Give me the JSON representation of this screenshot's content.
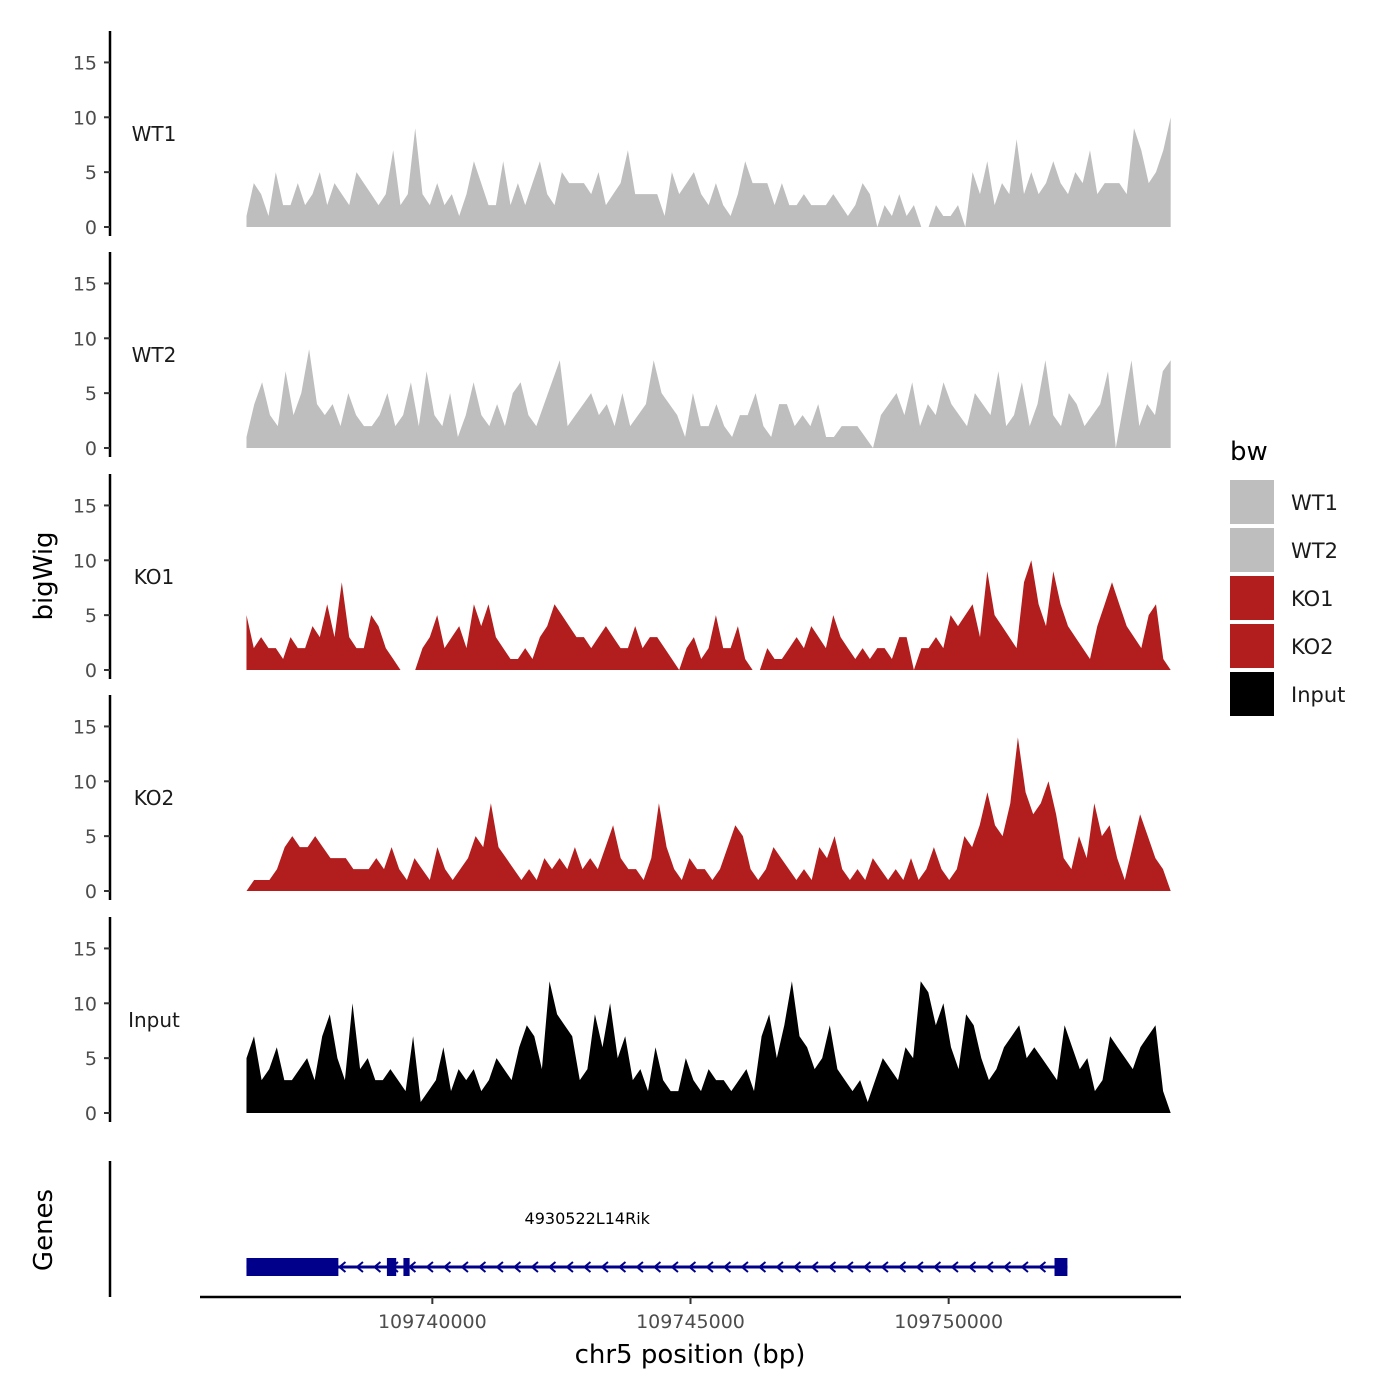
{
  "chart_data": {
    "type": "area",
    "genome_browser": true,
    "x": {
      "label": "chr5 position (bp)",
      "range": [
        109735500,
        109754500
      ],
      "ticks": [
        109740000,
        109745000,
        109750000
      ],
      "tick_labels": [
        "109740000",
        "109745000",
        "109750000"
      ]
    },
    "y": {
      "label": "bigWig",
      "range": [
        0,
        17.5
      ],
      "ticks": [
        0,
        5,
        10,
        15
      ],
      "tick_labels": [
        "0",
        "5",
        "10",
        "15"
      ]
    },
    "legend": {
      "title": "bw",
      "position": "right",
      "entries": [
        {
          "label": "WT1",
          "color": "#bebebe"
        },
        {
          "label": "WT2",
          "color": "#bebebe"
        },
        {
          "label": "KO1",
          "color": "#b21e1e"
        },
        {
          "label": "KO2",
          "color": "#b21e1e"
        },
        {
          "label": "Input",
          "color": "#000000"
        }
      ]
    },
    "series": [
      {
        "name": "WT1",
        "color": "#bebebe",
        "x_start": 109736400,
        "x_end": 109754300,
        "values": [
          1,
          4,
          3,
          1,
          5,
          2,
          2,
          4,
          2,
          3,
          5,
          2,
          4,
          3,
          2,
          5,
          4,
          3,
          2,
          3,
          7,
          2,
          3,
          9,
          3,
          2,
          4,
          2,
          3,
          1,
          3,
          6,
          4,
          2,
          2,
          6,
          2,
          4,
          2,
          4,
          6,
          3,
          2,
          5,
          4,
          4,
          4,
          3,
          5,
          2,
          3,
          4,
          7,
          3,
          3,
          3,
          3,
          1,
          5,
          3,
          4,
          5,
          3,
          2,
          4,
          2,
          1,
          3,
          6,
          4,
          4,
          4,
          2,
          4,
          2,
          2,
          3,
          2,
          2,
          2,
          3,
          2,
          1,
          2,
          4,
          3,
          0,
          2,
          1,
          3,
          1,
          2,
          0,
          0,
          2,
          1,
          1,
          2,
          0,
          5,
          3,
          6,
          2,
          4,
          3,
          8,
          3,
          5,
          3,
          4,
          6,
          4,
          3,
          5,
          4,
          7,
          3,
          4,
          4,
          4,
          3,
          9,
          7,
          4,
          5,
          7,
          10
        ]
      },
      {
        "name": "WT2",
        "color": "#bebebe",
        "x_start": 109736400,
        "x_end": 109754300,
        "values": [
          1,
          4,
          6,
          3,
          2,
          7,
          3,
          5,
          9,
          4,
          3,
          4,
          2,
          5,
          3,
          2,
          2,
          3,
          5,
          2,
          3,
          6,
          2,
          7,
          3,
          2,
          5,
          1,
          3,
          6,
          3,
          2,
          4,
          2,
          5,
          6,
          3,
          2,
          4,
          6,
          8,
          2,
          3,
          4,
          5,
          3,
          4,
          2,
          5,
          2,
          3,
          4,
          8,
          5,
          4,
          3,
          1,
          5,
          2,
          2,
          4,
          2,
          1,
          3,
          3,
          5,
          2,
          1,
          4,
          4,
          2,
          3,
          2,
          4,
          1,
          1,
          2,
          2,
          2,
          1,
          0,
          3,
          4,
          5,
          3,
          6,
          2,
          4,
          3,
          6,
          4,
          3,
          2,
          5,
          4,
          3,
          7,
          2,
          3,
          6,
          2,
          4,
          8,
          3,
          2,
          5,
          4,
          2,
          3,
          4,
          7,
          0,
          4,
          8,
          2,
          4,
          3,
          7,
          8
        ]
      },
      {
        "name": "KO1",
        "color": "#b21e1e",
        "x_start": 109736400,
        "x_end": 109754300,
        "values": [
          5,
          2,
          3,
          2,
          2,
          1,
          3,
          2,
          2,
          4,
          3,
          6,
          3,
          8,
          3,
          2,
          2,
          5,
          4,
          2,
          1,
          0,
          0,
          0,
          2,
          3,
          5,
          2,
          3,
          4,
          2,
          6,
          4,
          6,
          3,
          2,
          1,
          1,
          2,
          1,
          3,
          4,
          6,
          5,
          4,
          3,
          3,
          2,
          3,
          4,
          3,
          2,
          2,
          4,
          2,
          3,
          3,
          2,
          1,
          0,
          2,
          3,
          1,
          2,
          5,
          2,
          2,
          4,
          1,
          0,
          0,
          2,
          1,
          1,
          2,
          3,
          2,
          4,
          3,
          2,
          5,
          3,
          2,
          1,
          2,
          1,
          2,
          2,
          1,
          3,
          3,
          0,
          2,
          2,
          3,
          2,
          5,
          4,
          5,
          6,
          3,
          9,
          5,
          4,
          3,
          2,
          8,
          10,
          6,
          4,
          9,
          6,
          4,
          3,
          2,
          1,
          4,
          6,
          8,
          6,
          4,
          3,
          2,
          5,
          6,
          1,
          0
        ]
      },
      {
        "name": "KO2",
        "color": "#b21e1e",
        "x_start": 109736400,
        "x_end": 109754300,
        "values": [
          0,
          1,
          1,
          1,
          2,
          4,
          5,
          4,
          4,
          5,
          4,
          3,
          3,
          3,
          2,
          2,
          2,
          3,
          2,
          4,
          2,
          1,
          3,
          2,
          1,
          4,
          2,
          1,
          2,
          3,
          5,
          4,
          8,
          4,
          3,
          2,
          1,
          2,
          1,
          3,
          2,
          3,
          2,
          4,
          2,
          3,
          2,
          4,
          6,
          3,
          2,
          2,
          1,
          3,
          8,
          4,
          2,
          1,
          3,
          2,
          2,
          1,
          2,
          4,
          6,
          5,
          2,
          1,
          2,
          4,
          3,
          2,
          1,
          2,
          1,
          4,
          3,
          5,
          2,
          1,
          2,
          1,
          3,
          2,
          1,
          2,
          1,
          3,
          1,
          2,
          4,
          2,
          1,
          2,
          5,
          4,
          6,
          9,
          6,
          5,
          8,
          14,
          9,
          7,
          8,
          10,
          7,
          3,
          2,
          5,
          3,
          8,
          5,
          6,
          3,
          1,
          4,
          7,
          5,
          3,
          2,
          0
        ]
      },
      {
        "name": "Input",
        "color": "#000000",
        "x_start": 109736400,
        "x_end": 109754300,
        "values": [
          5,
          7,
          3,
          4,
          6,
          3,
          3,
          4,
          5,
          3,
          7,
          9,
          5,
          3,
          10,
          4,
          5,
          3,
          3,
          4,
          3,
          2,
          7,
          1,
          2,
          3,
          6,
          2,
          4,
          3,
          4,
          2,
          3,
          5,
          4,
          3,
          6,
          8,
          7,
          4,
          12,
          9,
          8,
          7,
          3,
          4,
          9,
          6,
          10,
          5,
          7,
          3,
          4,
          2,
          6,
          3,
          2,
          2,
          5,
          3,
          2,
          4,
          3,
          3,
          2,
          3,
          4,
          2,
          7,
          9,
          5,
          8,
          12,
          7,
          6,
          4,
          5,
          8,
          4,
          3,
          2,
          3,
          1,
          3,
          5,
          4,
          3,
          6,
          5,
          12,
          11,
          8,
          10,
          6,
          4,
          9,
          8,
          5,
          3,
          4,
          6,
          7,
          8,
          5,
          6,
          5,
          4,
          3,
          8,
          6,
          4,
          5,
          2,
          3,
          7,
          6,
          5,
          4,
          6,
          7,
          8,
          2,
          0
        ]
      }
    ],
    "gene_track": {
      "label": "Genes",
      "gene_name": "4930522L14Rik",
      "strand": "-",
      "color": "#00008b",
      "start": 109736400,
      "end": 109752300,
      "exons": [
        [
          109736400,
          109738180
        ],
        [
          109739120,
          109739300
        ],
        [
          109739440,
          109739560
        ],
        [
          109752050,
          109752300
        ]
      ]
    }
  }
}
